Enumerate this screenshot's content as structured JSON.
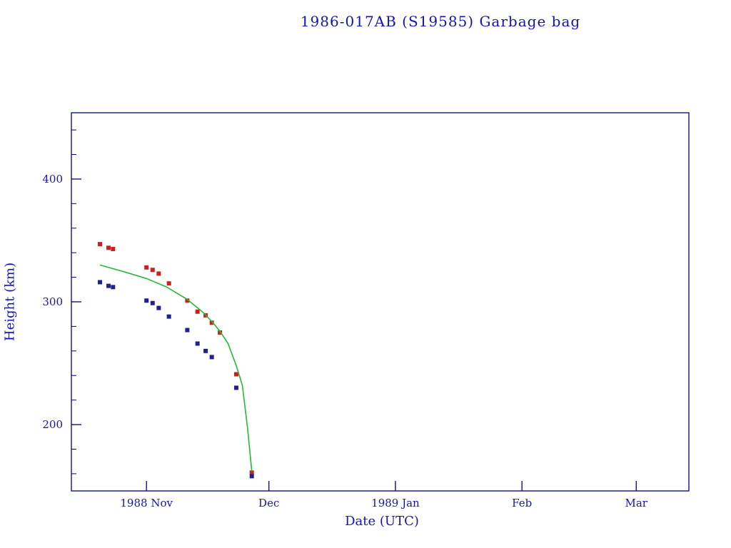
{
  "chart_data": {
    "type": "scatter",
    "title": "1986-017AB (S19585) Garbage bag",
    "xlabel": "Date (UTC)",
    "ylabel": "Height (km)",
    "x_unit": "days since 1988-11-01 UTC",
    "xlim": [
      -18.4,
      132.9
    ],
    "ylim": [
      146,
      454
    ],
    "grid": false,
    "legend": "none",
    "y_major_ticks": [
      200,
      300,
      400
    ],
    "y_minor_step": 20,
    "x_ticks": [
      {
        "day": 0,
        "label": "1988 Nov"
      },
      {
        "day": 30,
        "label": "Dec"
      },
      {
        "day": 61,
        "label": "1989 Jan"
      },
      {
        "day": 92,
        "label": "Feb"
      },
      {
        "day": 120,
        "label": "Mar"
      }
    ],
    "colors": {
      "frame": "#000080",
      "text": "#1414b4",
      "apogee": "#cc2020",
      "perigee": "#202090",
      "fit": "#22bb33"
    },
    "series": [
      {
        "name": "apogee-height",
        "type": "scatter",
        "marker": "square",
        "color_key": "apogee",
        "points": [
          [
            -11.4,
            347
          ],
          [
            -9.3,
            344
          ],
          [
            -8.2,
            343
          ],
          [
            0,
            328
          ],
          [
            1.5,
            326
          ],
          [
            3,
            323
          ],
          [
            5.5,
            315
          ],
          [
            10,
            301
          ],
          [
            12.5,
            292
          ],
          [
            14.5,
            289
          ],
          [
            16,
            283
          ],
          [
            18,
            275
          ],
          [
            22,
            241
          ],
          [
            25.8,
            161
          ]
        ]
      },
      {
        "name": "perigee-height",
        "type": "scatter",
        "marker": "square",
        "color_key": "perigee",
        "points": [
          [
            -11.4,
            316
          ],
          [
            -9.3,
            313
          ],
          [
            -8.2,
            312
          ],
          [
            0,
            301
          ],
          [
            1.5,
            299
          ],
          [
            3,
            295
          ],
          [
            5.5,
            288
          ],
          [
            10,
            277
          ],
          [
            12.5,
            266
          ],
          [
            14.5,
            260
          ],
          [
            16,
            255
          ],
          [
            22,
            230
          ],
          [
            25.8,
            158
          ]
        ]
      },
      {
        "name": "decay-fit",
        "type": "line",
        "color_key": "fit",
        "points": [
          [
            -11.4,
            330
          ],
          [
            -5,
            324
          ],
          [
            0,
            319
          ],
          [
            5,
            312
          ],
          [
            10,
            302
          ],
          [
            14,
            291
          ],
          [
            16,
            284
          ],
          [
            18,
            276
          ],
          [
            20,
            266
          ],
          [
            22,
            248
          ],
          [
            23.5,
            232
          ],
          [
            24.8,
            196
          ],
          [
            25.8,
            162
          ]
        ]
      }
    ]
  }
}
